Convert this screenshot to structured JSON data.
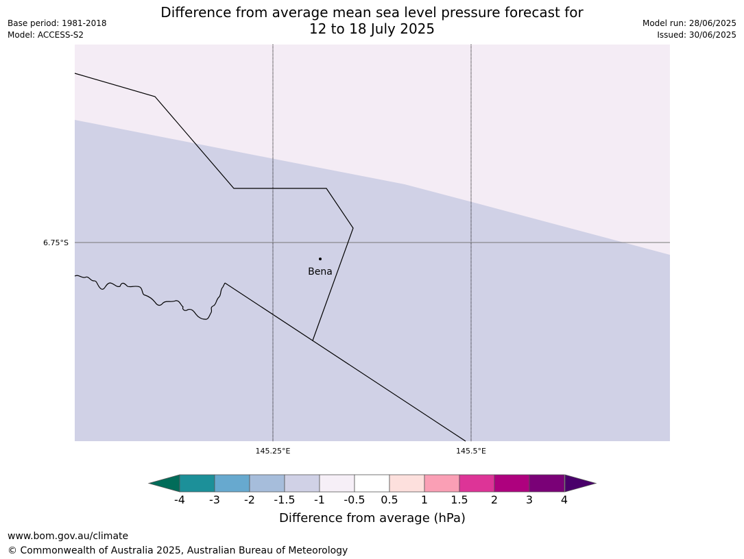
{
  "header": {
    "title_line1": "Difference from average mean sea level pressure forecast for",
    "title_line2": "12 to 18 July 2025",
    "base_period": "Base period: 1981-2018",
    "model": "Model: ACCESS-S2",
    "model_run": "Model run: 28/06/2025",
    "issued": "Issued: 30/06/2025"
  },
  "map": {
    "gridlines": {
      "latitude_labels": [
        "6.75°S"
      ],
      "longitude_labels": [
        "145.25°E",
        "145.5°E"
      ]
    },
    "places": [
      {
        "name": "Bena"
      }
    ],
    "fill_colors": {
      "region_upper": "#f4ecf5",
      "region_lower": "#d0d1e6"
    },
    "shaded_categories": [
      "-1.5 to -1",
      "-1 to -0.5"
    ]
  },
  "colorbar": {
    "title": "Difference from average (hPa)",
    "tick_labels": [
      "-4",
      "-3",
      "-2",
      "-1.5",
      "-1",
      "-0.5",
      "0.5",
      "1",
      "1.5",
      "2",
      "3",
      "4"
    ],
    "under_color": "#016c59",
    "over_color": "#49006a",
    "colors": [
      "#1c9099",
      "#67a9cf",
      "#a6bddb",
      "#d0d1e6",
      "#f6eff7",
      "#ffffff",
      "#fde0dd",
      "#fa9fb5",
      "#dd3497",
      "#ae017e",
      "#7a0177"
    ]
  },
  "footer": {
    "url": "www.bom.gov.au/climate",
    "copyright": "© Commonwealth of Australia 2025, Australian Bureau of Meteorology"
  }
}
